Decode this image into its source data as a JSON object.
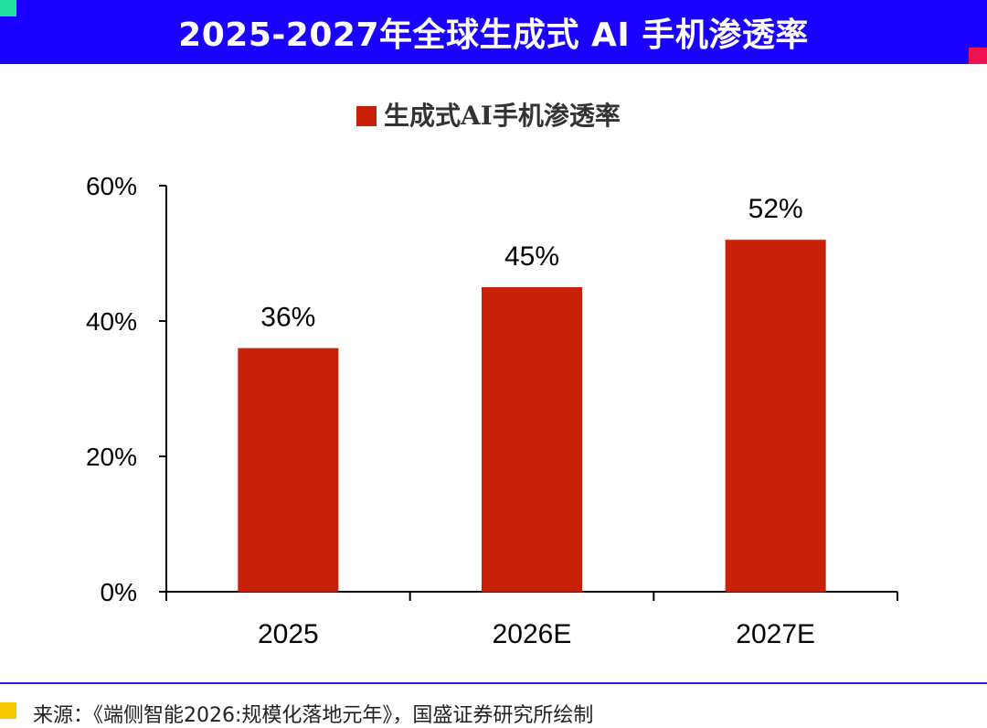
{
  "header": {
    "title": "2025-2027年全球生成式 AI 手机渗透率"
  },
  "footer": {
    "source": "来源：《端侧智能2026:规模化落地元年》，国盛证券研究所绘制"
  },
  "colors": {
    "header_bg": "#1a00ff",
    "bar": "#c8210a",
    "accent_teal": "#22e0a0",
    "accent_pink": "#f0104f",
    "accent_yellow": "#f7c800"
  },
  "chart_data": {
    "type": "bar",
    "categories": [
      "2025",
      "2026E",
      "2027E"
    ],
    "series": [
      {
        "name": "生成式AI手机渗透率",
        "values": [
          36,
          45,
          52
        ]
      }
    ],
    "data_labels": [
      "36%",
      "45%",
      "52%"
    ],
    "yticks": [
      "0%",
      "20%",
      "40%",
      "60%"
    ],
    "ylim": [
      0,
      60
    ],
    "legend": "top-center",
    "grid": false
  }
}
